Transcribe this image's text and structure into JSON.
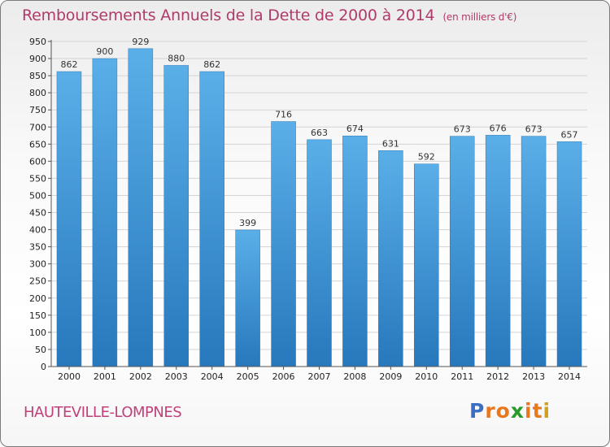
{
  "chart_data": {
    "type": "bar",
    "title": "Remboursements Annuels de la Dette de 2000 à 2014",
    "unit_note": "(en milliers d'€)",
    "categories": [
      "2000",
      "2001",
      "2002",
      "2003",
      "2004",
      "2005",
      "2006",
      "2007",
      "2008",
      "2009",
      "2010",
      "2011",
      "2012",
      "2013",
      "2014"
    ],
    "values": [
      862,
      900,
      929,
      880,
      862,
      399,
      716,
      663,
      674,
      631,
      592,
      673,
      676,
      673,
      657
    ],
    "value_labels": [
      "862",
      "900",
      "929",
      "880",
      "862",
      "399",
      "716",
      "663",
      "674",
      "631",
      "592",
      "673",
      "676",
      "673",
      "657"
    ],
    "ylim": [
      0,
      950
    ],
    "yticks": [
      "0",
      "50",
      "100",
      "150",
      "200",
      "250",
      "300",
      "350",
      "400",
      "450",
      "500",
      "550",
      "600",
      "650",
      "700",
      "750",
      "800",
      "850",
      "900",
      "950"
    ],
    "grid": true,
    "bar_color": "#3b8fd4",
    "xlabel": "",
    "ylabel": ""
  },
  "footer": {
    "commune": "HAUTEVILLE-LOMPNES",
    "logo_letters": [
      "P",
      "r",
      "o",
      "x",
      "i",
      "t",
      "i"
    ],
    "logo_colors": [
      "#3a6fc4",
      "#e8781e",
      "#e8781e",
      "#2a9a2a",
      "#e8781e",
      "#e8781e",
      "#d0a020"
    ]
  }
}
